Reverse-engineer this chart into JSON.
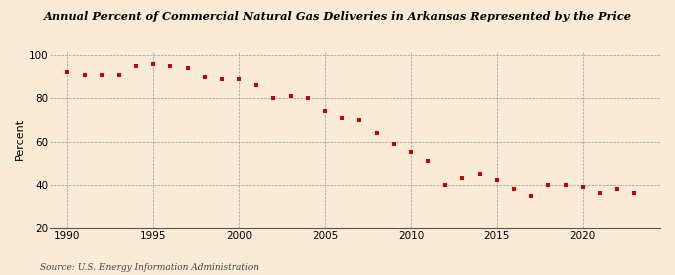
{
  "title": "Annual Percent of Commercial Natural Gas Deliveries in Arkansas Represented by the Price",
  "ylabel": "Percent",
  "source": "Source: U.S. Energy Information Administration",
  "background_color": "#faebd7",
  "marker_color": "#cc0000",
  "grid_color": "#999999",
  "years": [
    1990,
    1991,
    1992,
    1993,
    1994,
    1995,
    1996,
    1997,
    1998,
    1999,
    2000,
    2001,
    2002,
    2003,
    2004,
    2005,
    2006,
    2007,
    2008,
    2009,
    2010,
    2011,
    2012,
    2013,
    2014,
    2015,
    2016,
    2017,
    2018,
    2019,
    2020,
    2021,
    2022,
    2023
  ],
  "values": [
    92,
    91,
    91,
    91,
    95,
    96,
    95,
    94,
    90,
    89,
    89,
    86,
    80,
    81,
    80,
    74,
    71,
    70,
    64,
    59,
    55,
    51,
    40,
    43,
    45,
    42,
    38,
    35,
    40,
    40,
    39,
    36,
    38,
    36
  ],
  "ylim": [
    20,
    102
  ],
  "xlim": [
    1989,
    2024.5
  ],
  "yticks": [
    20,
    40,
    60,
    80,
    100
  ],
  "xticks": [
    1990,
    1995,
    2000,
    2005,
    2010,
    2015,
    2020
  ],
  "vlines": [
    1990,
    1995,
    2000,
    2005,
    2010,
    2015,
    2020
  ]
}
